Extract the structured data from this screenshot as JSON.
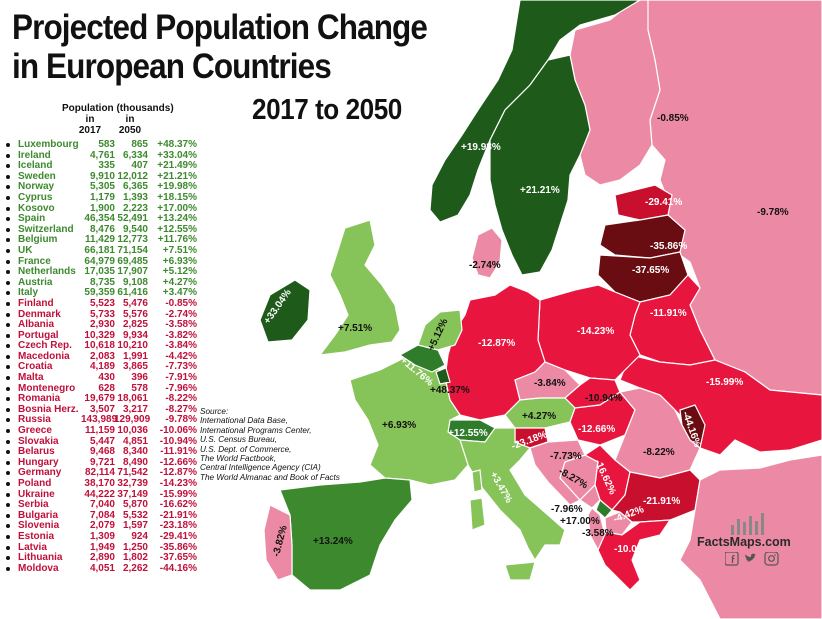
{
  "title_line1": "Projected Population Change",
  "title_line2": "in European Countries",
  "subtitle": "2017 to 2050",
  "legend": {
    "header": "Population (thousands)",
    "col1_in": "in",
    "col1_year": "2017",
    "col2_in": "in",
    "col2_year": "2050"
  },
  "colors": {
    "dark_green": "#1e5a1a",
    "mid_green": "#2f7d2a",
    "light_green": "#86c45a",
    "pale_pink": "#ec8aa6",
    "red": "#e8163f",
    "dark_red": "#c8102e",
    "darkest_red": "#6a0d12"
  },
  "rows": [
    {
      "name": "Luxembourg",
      "y2017": "583",
      "y2050": "865",
      "change": "+48.37%",
      "color": "#3d8a2e"
    },
    {
      "name": "Ireland",
      "y2017": "4,761",
      "y2050": "6,334",
      "change": "+33.04%",
      "color": "#3d8a2e"
    },
    {
      "name": "Iceland",
      "y2017": "335",
      "y2050": "407",
      "change": "+21.49%",
      "color": "#3d8a2e"
    },
    {
      "name": "Sweden",
      "y2017": "9,910",
      "y2050": "12,012",
      "change": "+21.21%",
      "color": "#3d8a2e"
    },
    {
      "name": "Norway",
      "y2017": "5,305",
      "y2050": "6,365",
      "change": "+19.98%",
      "color": "#3d8a2e"
    },
    {
      "name": "Cyprus",
      "y2017": "1,179",
      "y2050": "1,393",
      "change": "+18.15%",
      "color": "#3d8a2e"
    },
    {
      "name": "Kosovo",
      "y2017": "1,900",
      "y2050": "2,223",
      "change": "+17.00%",
      "color": "#3d8a2e"
    },
    {
      "name": "Spain",
      "y2017": "46,354",
      "y2050": "52,491",
      "change": "+13.24%",
      "color": "#3d8a2e"
    },
    {
      "name": "Switzerland",
      "y2017": "8,476",
      "y2050": "9,540",
      "change": "+12.55%",
      "color": "#3d8a2e"
    },
    {
      "name": "Belgium",
      "y2017": "11,429",
      "y2050": "12,773",
      "change": "+11.76%",
      "color": "#3d8a2e"
    },
    {
      "name": "UK",
      "y2017": "66,181",
      "y2050": "71,154",
      "change": "+7.51%",
      "color": "#3d8a2e"
    },
    {
      "name": "France",
      "y2017": "64,979",
      "y2050": "69,485",
      "change": "+6.93%",
      "color": "#3d8a2e"
    },
    {
      "name": "Netherlands",
      "y2017": "17,035",
      "y2050": "17,907",
      "change": "+5.12%",
      "color": "#3d8a2e"
    },
    {
      "name": "Austria",
      "y2017": "8,735",
      "y2050": "9,108",
      "change": "+4.27%",
      "color": "#3d8a2e"
    },
    {
      "name": "Italy",
      "y2017": "59,359",
      "y2050": "61,416",
      "change": "+3.47%",
      "color": "#3d8a2e"
    },
    {
      "name": "Finland",
      "y2017": "5,523",
      "y2050": "5,476",
      "change": "-0.85%",
      "color": "#c0103a"
    },
    {
      "name": "Denmark",
      "y2017": "5,733",
      "y2050": "5,576",
      "change": "-2.74%",
      "color": "#c0103a"
    },
    {
      "name": "Albania",
      "y2017": "2,930",
      "y2050": "2,825",
      "change": "-3.58%",
      "color": "#c0103a"
    },
    {
      "name": "Portugal",
      "y2017": "10,329",
      "y2050": "9,934",
      "change": "-3.82%",
      "color": "#c0103a"
    },
    {
      "name": "Czech Rep.",
      "y2017": "10,618",
      "y2050": "10,210",
      "change": "-3.84%",
      "color": "#c0103a"
    },
    {
      "name": "Macedonia",
      "y2017": "2,083",
      "y2050": "1,991",
      "change": "-4.42%",
      "color": "#c0103a"
    },
    {
      "name": "Croatia",
      "y2017": "4,189",
      "y2050": "3,865",
      "change": "-7.73%",
      "color": "#c0103a"
    },
    {
      "name": "Malta",
      "y2017": "430",
      "y2050": "396",
      "change": "-7.91%",
      "color": "#c0103a"
    },
    {
      "name": "Montenegro",
      "y2017": "628",
      "y2050": "578",
      "change": "-7.96%",
      "color": "#c0103a"
    },
    {
      "name": "Romania",
      "y2017": "19,679",
      "y2050": "18,061",
      "change": "-8.22%",
      "color": "#c0103a"
    },
    {
      "name": "Bosnia Herz.",
      "y2017": "3,507",
      "y2050": "3,217",
      "change": "-8.27%",
      "color": "#c0103a"
    },
    {
      "name": "Russia",
      "y2017": "143,989",
      "y2050": "129,909",
      "change": "-9.78%",
      "color": "#c0103a"
    },
    {
      "name": "Greece",
      "y2017": "11,159",
      "y2050": "10,036",
      "change": "-10.06%",
      "color": "#c0103a"
    },
    {
      "name": "Slovakia",
      "y2017": "5,447",
      "y2050": "4,851",
      "change": "-10.94%",
      "color": "#c0103a"
    },
    {
      "name": "Belarus",
      "y2017": "9,468",
      "y2050": "8,340",
      "change": "-11.91%",
      "color": "#c0103a"
    },
    {
      "name": "Hungary",
      "y2017": "9,721",
      "y2050": "8,490",
      "change": "-12.66%",
      "color": "#c0103a"
    },
    {
      "name": "Germany",
      "y2017": "82,114",
      "y2050": "71,542",
      "change": "-12.87%",
      "color": "#c0103a"
    },
    {
      "name": "Poland",
      "y2017": "38,170",
      "y2050": "32,739",
      "change": "-14.23%",
      "color": "#c0103a"
    },
    {
      "name": "Ukraine",
      "y2017": "44,222",
      "y2050": "37,149",
      "change": "-15.99%",
      "color": "#c0103a"
    },
    {
      "name": "Serbia",
      "y2017": "7,040",
      "y2050": "5,870",
      "change": "-16.62%",
      "color": "#c0103a"
    },
    {
      "name": "Bulgaria",
      "y2017": "7,084",
      "y2050": "5,532",
      "change": "-21.91%",
      "color": "#c0103a"
    },
    {
      "name": "Slovenia",
      "y2017": "2,079",
      "y2050": "1,597",
      "change": "-23.18%",
      "color": "#c0103a"
    },
    {
      "name": "Estonia",
      "y2017": "1,309",
      "y2050": "924",
      "change": "-29.41%",
      "color": "#c0103a"
    },
    {
      "name": "Latvia",
      "y2017": "1,949",
      "y2050": "1,250",
      "change": "-35.86%",
      "color": "#c0103a"
    },
    {
      "name": "Lithuania",
      "y2017": "2,890",
      "y2050": "1,802",
      "change": "-37.65%",
      "color": "#c0103a"
    },
    {
      "name": "Moldova",
      "y2017": "4,051",
      "y2050": "2,262",
      "change": "-44.16%",
      "color": "#c0103a"
    }
  ],
  "source": {
    "line1": "Source:",
    "line2": "International Data Base,",
    "line3": "International Programs Center,",
    "line4": "U.S. Census Bureau,",
    "line5": "U.S. Dept. of Commerce,",
    "line6": "The World Factbook,",
    "line7": "Central Intelligence Agency (CIA)",
    "line8": "The World Almanac and Book of Facts"
  },
  "map_labels": {
    "finland": "-0.85%",
    "norway": "+19.98%",
    "sweden": "+21.21%",
    "estonia": "-29.41%",
    "russia": "-9.78%",
    "latvia": "-35.86%",
    "lithuania": "-37.65%",
    "denmark": "-2.74%",
    "ireland": "+33.04%",
    "uk": "+7.51%",
    "netherlands": "+5.12%",
    "belgium": "+11.76%",
    "luxembourg": "+48.37%",
    "germany": "-12.87%",
    "poland": "-14.23%",
    "belarus": "-11.91%",
    "ukraine": "-15.99%",
    "czech": "-3.84%",
    "slovakia": "-10.94%",
    "austria": "+4.27%",
    "moldova": "-44.16%",
    "france": "+6.93%",
    "switzerland": "+12.55%",
    "hungary": "-12.66%",
    "romania": "-8.22%",
    "slovenia": "-23.18%",
    "croatia": "-7.73%",
    "bosnia": "-8.27%",
    "serbia": "-16.62%",
    "italy": "+3.47%",
    "montenegro": "-7.96%",
    "kosovo": "+17.00%",
    "albania": "-3.58%",
    "macedonia": "-4.42%",
    "bulgaria": "-21.91%",
    "greece": "-10.06%",
    "portugal": "-3.82%",
    "spain": "+13.24%"
  },
  "brand": {
    "name": "FactsMaps.com",
    "icons": [
      "facebook-icon",
      "twitter-icon",
      "instagram-icon"
    ]
  }
}
